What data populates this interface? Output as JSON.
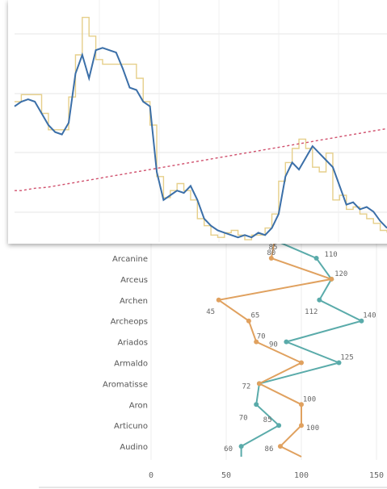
{
  "chart_data": [
    {
      "type": "line",
      "title": "",
      "xlabel": "",
      "ylabel": "",
      "categories": [
        "Arcanine",
        "Arceus",
        "Archen",
        "Archeops",
        "Ariados",
        "Armaldo",
        "Aromatisse",
        "Aron",
        "Articuno",
        "Audino"
      ],
      "series": [
        {
          "key": "teal",
          "color": "#5aabaa",
          "values": [
            110,
            120,
            112,
            140,
            90,
            125,
            72,
            70,
            85,
            60
          ]
        },
        {
          "key": "orange",
          "color": "#e0a15f",
          "values": [
            80,
            120,
            45,
            65,
            70,
            100,
            72,
            100,
            100,
            86
          ]
        }
      ],
      "labels_shown": {
        "teal": [
          "110",
          "",
          "112",
          "140",
          "90",
          "125",
          "72",
          "70",
          "85",
          "60"
        ],
        "orange": [
          "80",
          "120",
          "45",
          "65",
          "70",
          "",
          "",
          "100",
          "100",
          "86"
        ],
        "extra_top": "85"
      },
      "x_ticks": [
        "0",
        "50",
        "100",
        "150"
      ],
      "xlim": [
        0,
        160
      ],
      "grid": true,
      "legend": "none"
    },
    {
      "type": "line",
      "title": "",
      "xlabel": "",
      "ylabel": "",
      "description_colors": {
        "smooth": "#3b6fa8",
        "step": "#e6cf8a",
        "trend": "#d0506d"
      },
      "grid": true,
      "legend": "none",
      "series": [
        {
          "key": "smooth",
          "style": "solid",
          "y": [
            0.58,
            0.6,
            0.61,
            0.6,
            0.55,
            0.5,
            0.47,
            0.46,
            0.51,
            0.72,
            0.8,
            0.7,
            0.82,
            0.83,
            0.82,
            0.81,
            0.74,
            0.66,
            0.65,
            0.6,
            0.58,
            0.3,
            0.18,
            0.2,
            0.22,
            0.21,
            0.24,
            0.18,
            0.1,
            0.07,
            0.05,
            0.04,
            0.03,
            0.02,
            0.03,
            0.02,
            0.04,
            0.03,
            0.06,
            0.12,
            0.28,
            0.34,
            0.31,
            0.36,
            0.41,
            0.38,
            0.35,
            0.32,
            0.24,
            0.16,
            0.17,
            0.14,
            0.15,
            0.13,
            0.09,
            0.06
          ]
        },
        {
          "key": "step",
          "style": "step",
          "y": [
            0.6,
            0.63,
            0.63,
            0.63,
            0.55,
            0.48,
            0.48,
            0.48,
            0.62,
            0.8,
            0.96,
            0.88,
            0.78,
            0.76,
            0.76,
            0.76,
            0.76,
            0.76,
            0.7,
            0.6,
            0.5,
            0.28,
            0.19,
            0.22,
            0.25,
            0.22,
            0.18,
            0.1,
            0.07,
            0.03,
            0.02,
            0.04,
            0.05,
            0.03,
            0.01,
            0.03,
            0.03,
            0.06,
            0.12,
            0.26,
            0.34,
            0.4,
            0.44,
            0.4,
            0.32,
            0.3,
            0.38,
            0.18,
            0.2,
            0.14,
            0.15,
            0.12,
            0.1,
            0.08,
            0.05,
            0.04
          ]
        },
        {
          "key": "trend",
          "style": "dashed",
          "y": [
            0.22,
            0.22,
            0.225,
            0.23,
            0.232,
            0.235,
            0.24,
            0.245,
            0.25,
            0.255,
            0.26,
            0.265,
            0.27,
            0.275,
            0.28,
            0.285,
            0.29,
            0.295,
            0.3,
            0.305,
            0.31,
            0.315,
            0.32,
            0.325,
            0.33,
            0.335,
            0.34,
            0.345,
            0.35,
            0.355,
            0.36,
            0.365,
            0.37,
            0.375,
            0.38,
            0.385,
            0.39,
            0.395,
            0.4,
            0.405,
            0.41,
            0.415,
            0.42,
            0.425,
            0.43,
            0.435,
            0.44,
            0.445,
            0.45,
            0.455,
            0.46,
            0.465,
            0.47,
            0.475,
            0.48,
            0.485
          ]
        }
      ]
    }
  ]
}
